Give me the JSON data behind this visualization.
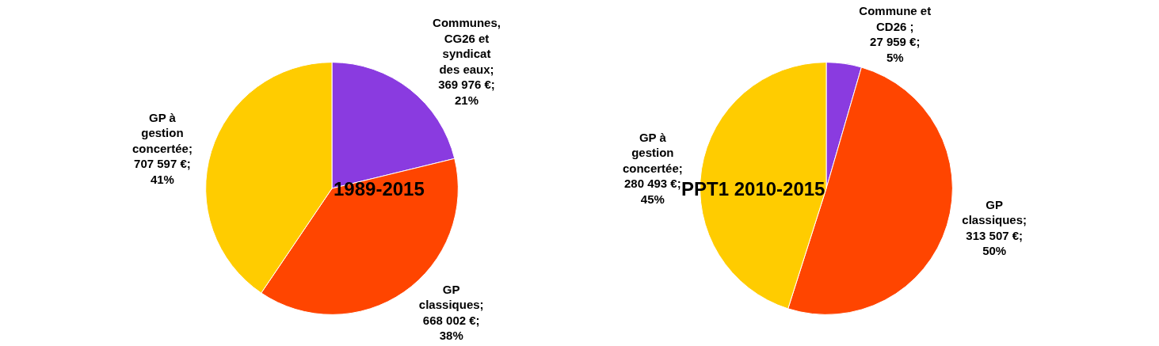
{
  "chart_data": [
    {
      "type": "pie",
      "title": "1989-2015",
      "categories": [
        "Communes, CG26 et syndicat des eaux",
        "GP classiques",
        "GP à gestion concertée"
      ],
      "values": [
        369976,
        668002,
        707597
      ],
      "value_labels": [
        "; 369 976 €; 21%",
        "; 668 002 €; 38%",
        "; 707 597 €; 41%"
      ],
      "colors": [
        "#8a3be0",
        "#ff4500",
        "#ffcc00"
      ]
    },
    {
      "type": "pie",
      "title": "PPT1 2010-2015",
      "categories": [
        "Commune et CD26",
        "GP classiques",
        "GP à gestion concertée"
      ],
      "values": [
        27959,
        313507,
        280493
      ],
      "value_labels": [
        " ; 27 959 €; 5%",
        "; 313 507 €; 50%",
        "; 280 493 €; 45%"
      ],
      "colors": [
        "#8a3be0",
        "#ff4500",
        "#ffcc00"
      ]
    }
  ]
}
